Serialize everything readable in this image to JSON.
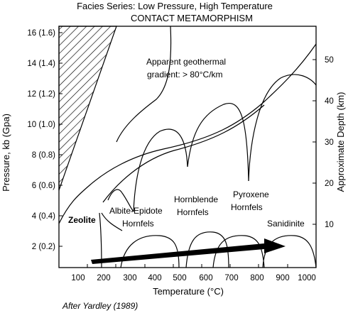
{
  "title_line1": "Facies Series: Low  Pressure, High Temperature",
  "title_line2": "CONTACT METAMORPHISM",
  "x_axis": {
    "label": "Temperature (°C)",
    "ticks": [
      "100",
      "200",
      "300",
      "400",
      "500",
      "600",
      "700",
      "800",
      "900",
      "1000"
    ]
  },
  "y_axis_left": {
    "label": "Pressure, kb (Gpa)",
    "ticks": [
      "2 (0.2)",
      "4 (0.4)",
      "6 (0.6)",
      "8 (0.8)",
      "10 (1.0)",
      "12 (1.2)",
      "14 (1.4)",
      "16 (1.6)"
    ]
  },
  "y_axis_right": {
    "label": "Approximate Depth (km)",
    "ticks": [
      "10",
      "20",
      "30",
      "40",
      "50"
    ]
  },
  "annotations": {
    "geotherm_line1": "Apparent geothermal",
    "geotherm_line2": "gradient:  > 80°C/km"
  },
  "facies": {
    "zeolite": "Zeolite",
    "albite_epidote_1": "Albite-Epidote",
    "albite_epidote_2": "Hornfels",
    "hornblende_1": "Hornblende",
    "hornblende_2": "Hornfels",
    "pyroxene_1": "Pyroxene",
    "pyroxene_2": "Hornfels",
    "sanidinite": "Sanidinite"
  },
  "credit": "After Yardley (1989)"
}
